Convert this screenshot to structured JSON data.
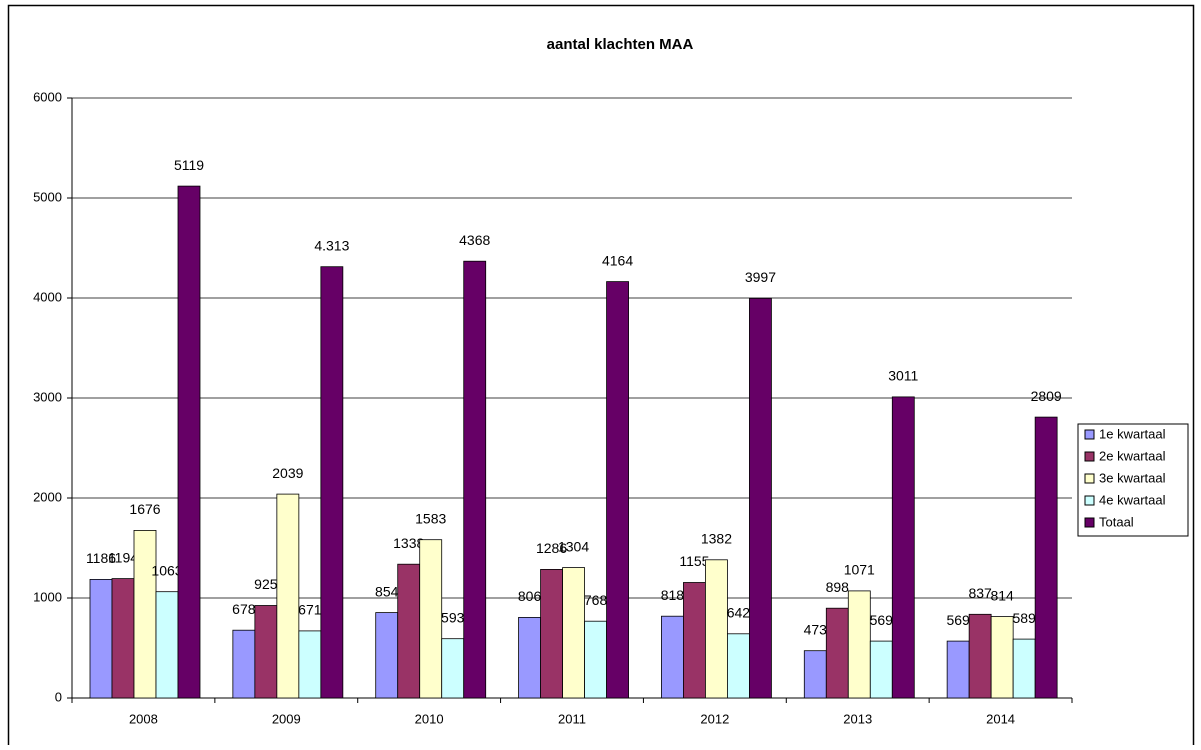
{
  "chart_data": {
    "type": "bar",
    "title": "aantal klachten MAA",
    "categories": [
      "2008",
      "2009",
      "2010",
      "2011",
      "2012",
      "2013",
      "2014"
    ],
    "series": [
      {
        "name": "1e kwartaal",
        "color": "#9999ff",
        "values": [
          1186,
          678,
          854,
          806,
          818,
          473,
          569
        ]
      },
      {
        "name": "2e kwartaal",
        "color": "#993366",
        "values": [
          1194,
          925,
          1338,
          1286,
          1155,
          898,
          837
        ]
      },
      {
        "name": "3e kwartaal",
        "color": "#ffffcc",
        "values": [
          1676,
          2039,
          1583,
          1304,
          1382,
          1071,
          814
        ]
      },
      {
        "name": "4e kwartaal",
        "color": "#ccffff",
        "values": [
          1063,
          671,
          593,
          768,
          642,
          569,
          589
        ]
      },
      {
        "name": "Totaal",
        "color": "#660066",
        "values": [
          5119,
          4313,
          4368,
          4164,
          3997,
          3011,
          2809
        ],
        "value_labels": [
          "5119",
          "4.313",
          "4368",
          "4164",
          "3997",
          "3011",
          "2809"
        ]
      }
    ],
    "ylim": [
      0,
      6000
    ],
    "yticks": [
      0,
      1000,
      2000,
      3000,
      4000,
      5000,
      6000
    ],
    "grid": true,
    "legend": "right"
  }
}
